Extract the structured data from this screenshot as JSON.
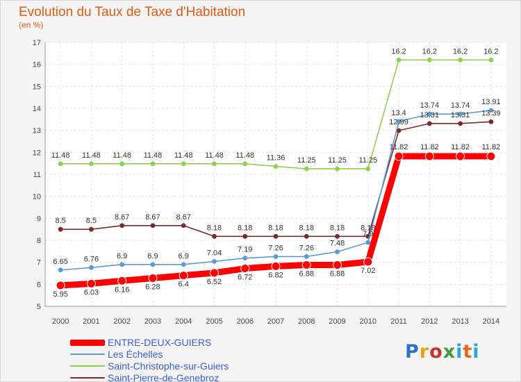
{
  "chart_data": {
    "type": "line",
    "title": "Evolution du Taux de Taxe d'Habitation",
    "unit_label": "(en %)",
    "x": [
      "2000",
      "2001",
      "2002",
      "2003",
      "2004",
      "2005",
      "2006",
      "2007",
      "2008",
      "2009",
      "2010",
      "2011",
      "2012",
      "2013",
      "2014"
    ],
    "ylim": [
      5,
      17
    ],
    "yticks": [
      "5",
      "6",
      "7",
      "8",
      "9",
      "10",
      "11",
      "12",
      "13",
      "14",
      "15",
      "16",
      "17"
    ],
    "grid": true,
    "legend_position": "bottom-left",
    "series": [
      {
        "name": "ENTRE-DEUX-GUIERS",
        "color": "#ff0000",
        "values": [
          5.95,
          6.03,
          6.16,
          6.28,
          6.4,
          6.52,
          6.72,
          6.82,
          6.88,
          6.88,
          7.02,
          11.82,
          11.82,
          11.82,
          11.82
        ],
        "labels": [
          "5.95",
          "6.03",
          "6.16",
          "6.28",
          "6.4",
          "6.52",
          "6.72",
          "6.82",
          "6.88",
          "6.88",
          "7.02",
          "11.82",
          "11.82",
          "11.82",
          "11.82"
        ]
      },
      {
        "name": "Les Échelles",
        "color": "#5b9bd5",
        "values": [
          6.65,
          6.76,
          6.9,
          6.9,
          6.9,
          7.04,
          7.19,
          7.26,
          7.26,
          7.48,
          7.9,
          13.4,
          13.74,
          13.74,
          13.91
        ],
        "labels": [
          "6.65",
          "6.76",
          "6.9",
          "6.9",
          "6.9",
          "7.04",
          "7.19",
          "7.26",
          "7.26",
          "7.48",
          "7.9",
          "13.4",
          "13.74",
          "13.74",
          "13.91"
        ]
      },
      {
        "name": "Saint-Christophe-sur-Guiers",
        "color": "#8fd14f",
        "values": [
          11.48,
          11.48,
          11.48,
          11.48,
          11.48,
          11.48,
          11.48,
          11.36,
          11.25,
          11.25,
          11.25,
          16.2,
          16.2,
          16.2,
          16.2
        ],
        "labels": [
          "11.48",
          "11.48",
          "11.48",
          "11.48",
          "11.48",
          "11.48",
          "11.48",
          "11.36",
          "11.25",
          "11.25",
          "11.25",
          "16.2",
          "16.2",
          "16.2",
          "16.2"
        ]
      },
      {
        "name": "Saint-Pierre-de-Genebroz",
        "color": "#7b2a2a",
        "values": [
          8.5,
          8.5,
          8.67,
          8.67,
          8.67,
          8.18,
          8.18,
          8.18,
          8.18,
          8.18,
          8.18,
          12.99,
          13.31,
          13.31,
          13.39
        ],
        "labels": [
          "8.5",
          "8.5",
          "8.67",
          "8.67",
          "8.67",
          "8.18",
          "8.18",
          "8.18",
          "8.18",
          "8.18",
          "8.18",
          "12.99",
          "13.31",
          "13.31",
          "13.39"
        ]
      }
    ]
  },
  "logo": {
    "letters": [
      "P",
      "r",
      "o",
      "x",
      "i",
      "t",
      "i"
    ]
  }
}
